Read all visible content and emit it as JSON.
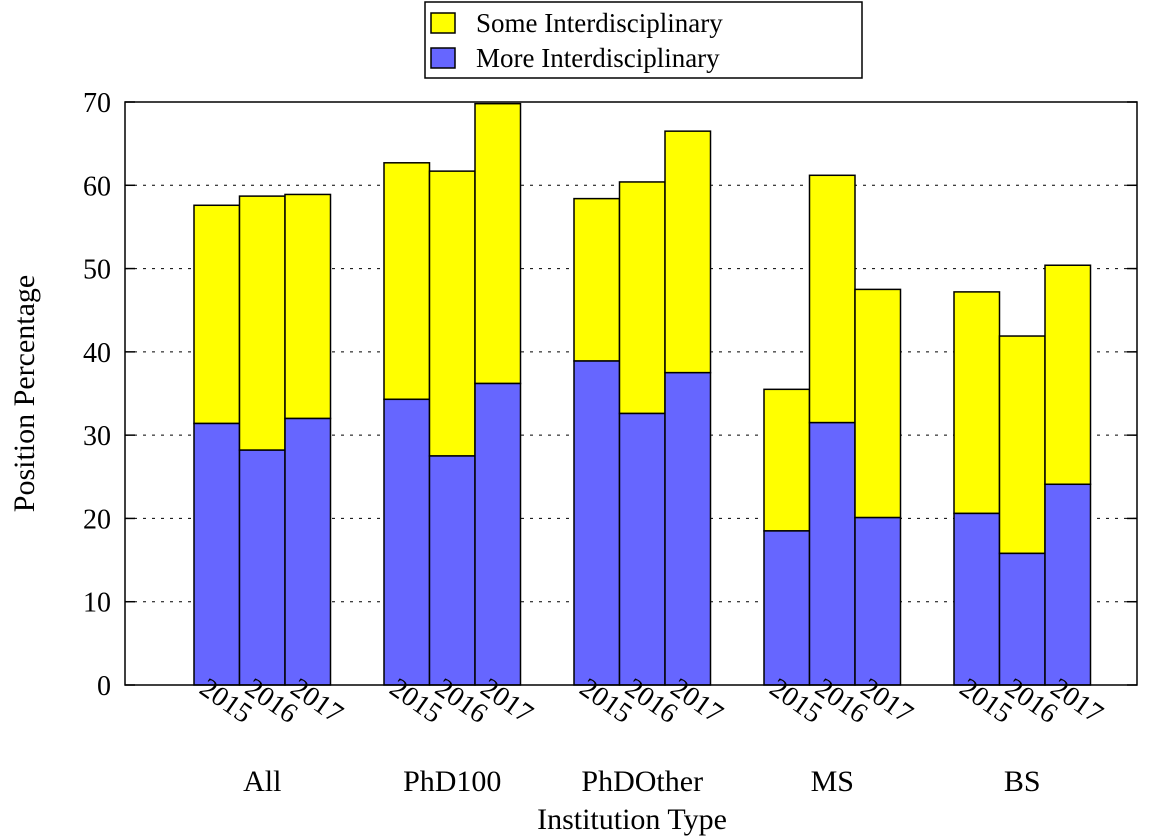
{
  "chart_data": {
    "type": "bar",
    "stacked": true,
    "title": "",
    "xlabel": "Institution Type",
    "ylabel": "Position Percentage",
    "ylim": [
      0,
      70
    ],
    "yticks": [
      0,
      10,
      20,
      30,
      40,
      50,
      60,
      70
    ],
    "grid": "horizontal dotted",
    "legend_position": "top-center",
    "colors": {
      "more": "#6666ff",
      "some": "#ffff00",
      "outline": "#000000"
    },
    "groups": [
      {
        "label": "All",
        "years": [
          "2015",
          "2016",
          "2017"
        ],
        "more": [
          31.4,
          28.2,
          32.0
        ],
        "total": [
          57.6,
          58.7,
          58.9
        ]
      },
      {
        "label": "PhD100",
        "years": [
          "2015",
          "2016",
          "2017"
        ],
        "more": [
          34.3,
          27.5,
          36.2
        ],
        "total": [
          62.7,
          61.7,
          69.8
        ]
      },
      {
        "label": "PhDOther",
        "years": [
          "2015",
          "2016",
          "2017"
        ],
        "more": [
          38.9,
          32.6,
          37.5
        ],
        "total": [
          58.4,
          60.4,
          66.5
        ]
      },
      {
        "label": "MS",
        "years": [
          "2015",
          "2016",
          "2017"
        ],
        "more": [
          18.5,
          31.5,
          20.1
        ],
        "total": [
          35.5,
          61.2,
          47.5
        ]
      },
      {
        "label": "BS",
        "years": [
          "2015",
          "2016",
          "2017"
        ],
        "more": [
          20.6,
          15.8,
          24.1
        ],
        "total": [
          47.2,
          41.9,
          50.4
        ]
      }
    ],
    "series": [
      {
        "name": "Some Interdisciplinary",
        "key": "some"
      },
      {
        "name": "More Interdisciplinary",
        "key": "more"
      }
    ]
  }
}
